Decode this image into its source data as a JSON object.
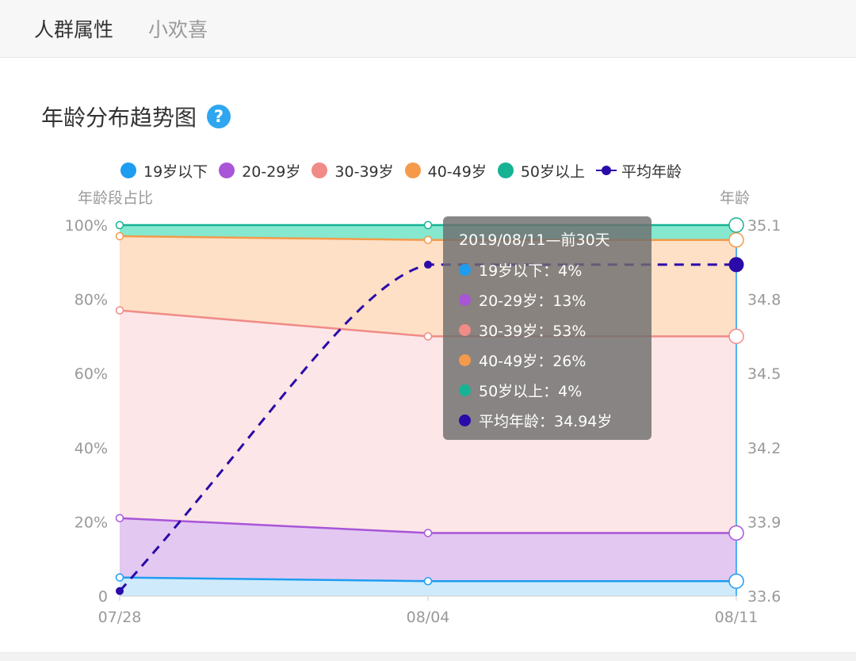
{
  "tabs": {
    "active": "人群属性",
    "inactive": "小欢喜"
  },
  "card": {
    "title": "年龄分布趋势图",
    "help_glyph": "?"
  },
  "chart_data": {
    "type": "area",
    "stacked": true,
    "x": [
      "07/28",
      "08/04",
      "08/11"
    ],
    "series": [
      {
        "name": "19岁以下",
        "color": "#1e9df0",
        "values": [
          5,
          4,
          4
        ]
      },
      {
        "name": "20-29岁",
        "color": "#a855d8",
        "values": [
          16,
          13,
          13
        ]
      },
      {
        "name": "30-39岁",
        "color": "#f08b87",
        "values": [
          56,
          53,
          53
        ]
      },
      {
        "name": "40-49岁",
        "color": "#f49a4a",
        "values": [
          20,
          26,
          26
        ]
      },
      {
        "name": "50岁以上",
        "color": "#17b294",
        "values": [
          3,
          4,
          4
        ]
      }
    ],
    "line_series": {
      "name": "平均年龄",
      "color": "#2a0aa8",
      "axis": "right",
      "values": [
        33.62,
        34.94,
        34.94
      ]
    },
    "y_left": {
      "label": "年龄段占比",
      "ticks": [
        "0",
        "20%",
        "40%",
        "60%",
        "80%",
        "100%"
      ],
      "range": [
        0,
        100
      ]
    },
    "y_right": {
      "label": "年龄",
      "ticks": [
        "33.6",
        "33.9",
        "34.2",
        "34.5",
        "34.8",
        "35.1"
      ],
      "range": [
        33.6,
        35.1
      ]
    },
    "legend_position": "top",
    "grid": true,
    "tooltip": {
      "title": "2019/08/11—前30天",
      "rows": [
        {
          "label": "19岁以下：4%",
          "color": "#1e9df0"
        },
        {
          "label": "20-29岁：13%",
          "color": "#a855d8"
        },
        {
          "label": "30-39岁：53%",
          "color": "#f08b87"
        },
        {
          "label": "40-49岁：26%",
          "color": "#f49a4a"
        },
        {
          "label": "50岁以上：4%",
          "color": "#17b294"
        },
        {
          "label": "平均年龄：34.94岁",
          "color": "#2a0aa8"
        }
      ]
    }
  }
}
